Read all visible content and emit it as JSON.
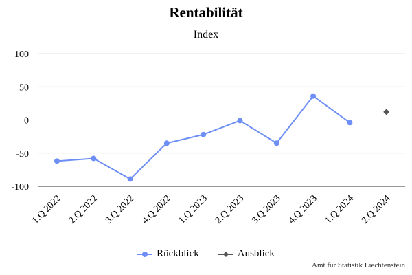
{
  "chart_data": {
    "type": "line",
    "title": "Rentabilität",
    "subtitle": "Index",
    "categories": [
      "1.Q 2022",
      "2.Q 2022",
      "3.Q 2022",
      "4.Q 2022",
      "1.Q 2023",
      "2.Q 2023",
      "3.Q 2023",
      "4.Q 2023",
      "1.Q 2024",
      "2.Q 2024"
    ],
    "series": [
      {
        "name": "Rückblick",
        "color": "#6e8ff5",
        "marker": "circle",
        "values": [
          -62,
          -58,
          -89,
          -35,
          -22,
          -1,
          -35,
          36,
          -4,
          null
        ]
      },
      {
        "name": "Ausblick",
        "color": "#555555",
        "marker": "diamond",
        "values": [
          null,
          null,
          null,
          null,
          null,
          null,
          null,
          null,
          null,
          12
        ]
      }
    ],
    "y_ticks": [
      100,
      50,
      0,
      -50,
      -100
    ],
    "ylim": [
      -100,
      100
    ],
    "grid": true,
    "legend_position": "bottom-center"
  },
  "credit": "Amt für Statistik Liechtenstein"
}
